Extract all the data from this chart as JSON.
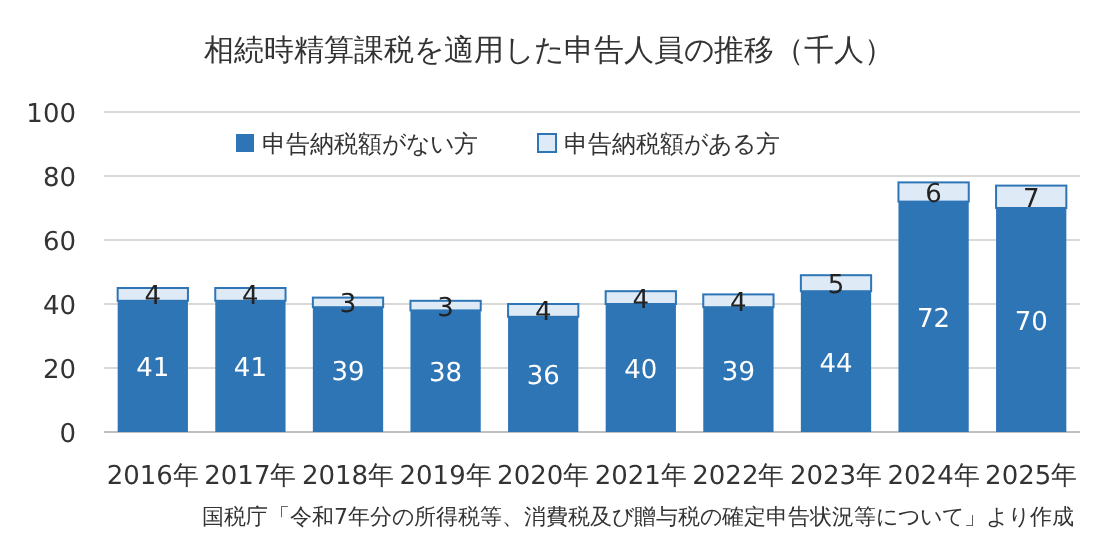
{
  "chart_data": {
    "type": "bar",
    "title": "相続時精算課税を適用した申告人員の推移（千人）",
    "categories": [
      "2016年",
      "2017年",
      "2018年",
      "2019年",
      "2020年",
      "2021年",
      "2022年",
      "2023年",
      "2024年",
      "2025年"
    ],
    "series": [
      {
        "name": "申告納税額がない方",
        "color": "#2e75b6",
        "values": [
          41,
          41,
          39,
          38,
          36,
          40,
          39,
          44,
          72,
          70
        ]
      },
      {
        "name": "申告納税額がある方",
        "color": "#deebf7",
        "values": [
          4,
          4,
          3,
          3,
          4,
          4,
          4,
          5,
          6,
          7
        ]
      }
    ],
    "stacked": true,
    "ylim": [
      0,
      100
    ],
    "yticks": [
      0,
      20,
      40,
      60,
      80,
      100
    ],
    "grid": "y",
    "legend": "top",
    "data_labels": true,
    "annotations": [
      "国税庁「令和7年分の所得税等、消費税及び贈与税の確定申告状況等について」より作成"
    ]
  }
}
